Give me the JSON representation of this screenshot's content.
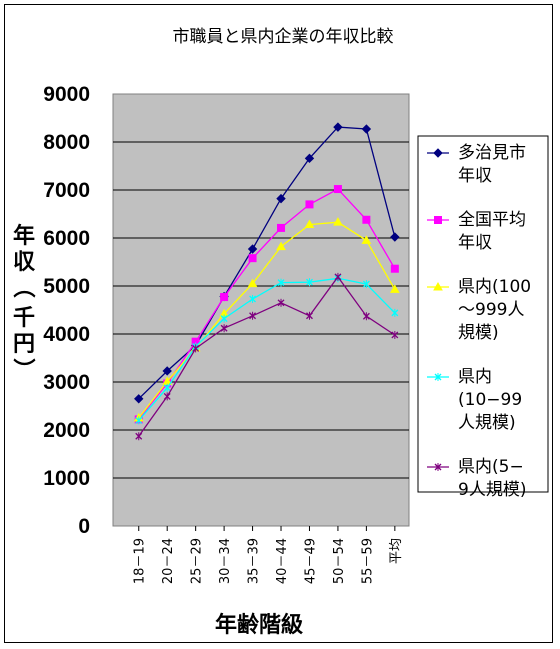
{
  "chart_data": {
    "type": "line",
    "title": "市職員と県内企業の年収比較",
    "xlabel": "年齢階級",
    "ylabel": "年収（千円）",
    "ylim": [
      0,
      9000
    ],
    "yticks": [
      0,
      1000,
      2000,
      3000,
      4000,
      5000,
      6000,
      7000,
      8000,
      9000
    ],
    "grid": "horizontal",
    "legend_position": "right",
    "categories": [
      "18－19",
      "20－24",
      "25－29",
      "30－34",
      "35－39",
      "40－44",
      "45－49",
      "50－54",
      "55－59",
      "平均"
    ],
    "series": [
      {
        "name": "多治見市年収",
        "legend_lines": [
          "多治見市",
          "年収"
        ],
        "color": "#00007f",
        "marker": "diamond",
        "values": [
          2650,
          3230,
          3760,
          4780,
          5770,
          6820,
          7660,
          8310,
          8270,
          6020
        ]
      },
      {
        "name": "全国平均年収",
        "legend_lines": [
          "全国平均",
          "年収"
        ],
        "color": "#ff00ff",
        "marker": "square",
        "values": [
          2220,
          2970,
          3840,
          4770,
          5580,
          6210,
          6700,
          7020,
          6380,
          5360
        ]
      },
      {
        "name": "県内(100〜999人規模)",
        "legend_lines": [
          "県内(100",
          "〜999人",
          "規模)"
        ],
        "color": "#ffff00",
        "marker": "triangle",
        "values": [
          2250,
          3010,
          3710,
          4420,
          5050,
          5820,
          6280,
          6330,
          5950,
          4930
        ]
      },
      {
        "name": "県内(10−99人規模)",
        "legend_lines": [
          "県内",
          "(10−99",
          "人規模)"
        ],
        "color": "#00ffff",
        "marker": "x",
        "values": [
          2200,
          2880,
          3740,
          4320,
          4730,
          5070,
          5080,
          5160,
          5040,
          4440
        ]
      },
      {
        "name": "県内(5−9人規模)",
        "legend_lines": [
          "県内(5−",
          "9人規模)"
        ],
        "color": "#7f007f",
        "marker": "x",
        "values": [
          1870,
          2700,
          3700,
          4120,
          4380,
          4650,
          4380,
          5190,
          4370,
          3980
        ]
      }
    ]
  }
}
